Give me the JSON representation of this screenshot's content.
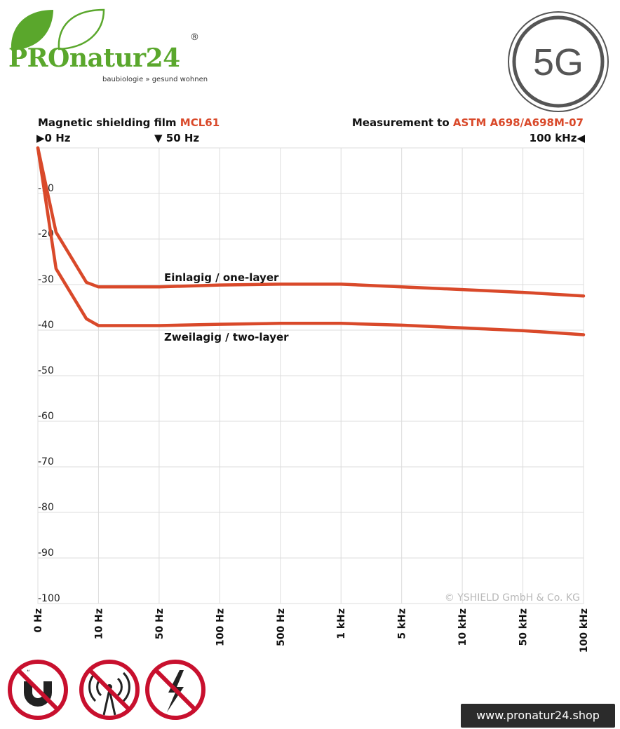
{
  "brand": {
    "name": "PROnatur24",
    "registered": "®",
    "tagline": "baubiologie » gesund wohnen",
    "badge": "5G",
    "url": "www.pronatur24.shop"
  },
  "header": {
    "title_prefix": "Magnetic shielding film ",
    "title_product": "MCL61",
    "measure_prefix": "Measurement to ",
    "measure_standard": "ASTM A698/A698M-07",
    "range_start": "0 Hz",
    "marker": "50 Hz",
    "range_end": "100 kHz"
  },
  "colors": {
    "accent": "#d9492a",
    "brand_green": "#5aa72c",
    "prohibit_red": "#c8102e",
    "grid": "#dcdcdc"
  },
  "icons": [
    "no-magnet-icon",
    "no-radio-tower-icon",
    "no-lightning-icon"
  ],
  "chart_data": {
    "type": "line",
    "categories": [
      "0 Hz",
      "10 Hz",
      "50 Hz",
      "100 Hz",
      "500 Hz",
      "1 kHz",
      "5 kHz",
      "10 kHz",
      "50 kHz",
      "100 kHz"
    ],
    "y_ticks": [
      "-10",
      "-20",
      "-30",
      "-40",
      "-50",
      "-60",
      "-70",
      "-80",
      "-90",
      "-100"
    ],
    "ylim": [
      -100,
      0
    ],
    "grid": true,
    "copyright": "© YSHIELD GmbH & Co. KG",
    "series": [
      {
        "name": "Einlagig / one-layer",
        "x": [
          0,
          0.3,
          0.8,
          1,
          2,
          3,
          4,
          5,
          6,
          7,
          8,
          9
        ],
        "values": [
          0,
          -18.5,
          -29.5,
          -30.5,
          -30.5,
          -30.1,
          -29.9,
          -29.9,
          -30.5,
          -31.1,
          -31.7,
          -32.5
        ]
      },
      {
        "name": "Zweilagig / two-layer",
        "x": [
          0,
          0.3,
          0.8,
          1,
          2,
          3,
          4,
          5,
          6,
          7,
          8,
          9
        ],
        "values": [
          0,
          -26.5,
          -37.5,
          -39.0,
          -39.0,
          -38.7,
          -38.5,
          -38.5,
          -38.9,
          -39.5,
          -40.1,
          -41.0
        ]
      }
    ]
  }
}
